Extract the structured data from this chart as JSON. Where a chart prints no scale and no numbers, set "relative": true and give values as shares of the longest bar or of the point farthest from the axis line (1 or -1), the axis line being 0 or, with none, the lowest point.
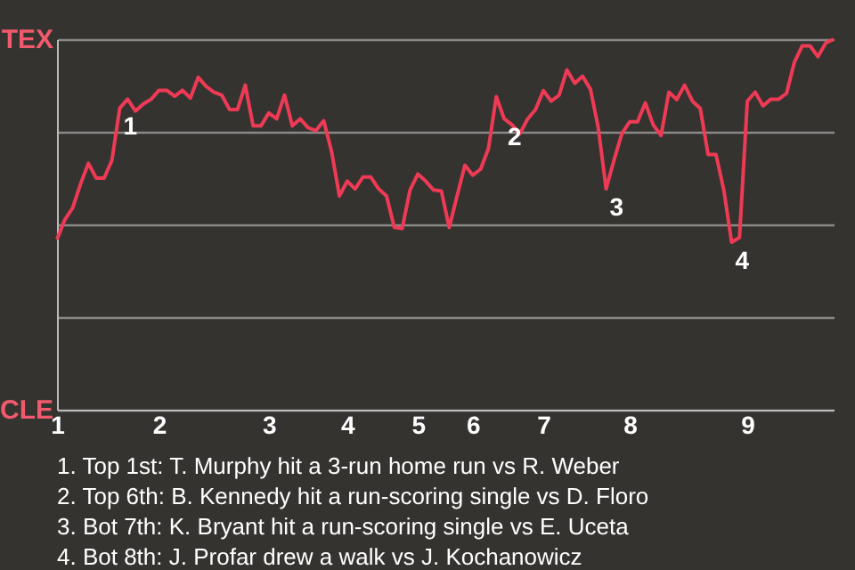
{
  "chart_data": {
    "type": "line",
    "relative": true,
    "categories": [
      "1",
      null,
      null,
      null,
      null,
      null,
      null,
      null,
      null,
      null,
      null,
      null,
      null,
      "2",
      null,
      null,
      null,
      null,
      null,
      null,
      null,
      null,
      null,
      null,
      null,
      null,
      null,
      "3",
      null,
      null,
      null,
      null,
      null,
      null,
      null,
      null,
      null,
      "4",
      null,
      null,
      null,
      null,
      null,
      null,
      null,
      null,
      "5",
      null,
      null,
      null,
      null,
      null,
      null,
      "6",
      null,
      null,
      null,
      null,
      null,
      null,
      null,
      null,
      "7",
      null,
      null,
      null,
      null,
      null,
      null,
      null,
      null,
      null,
      null,
      "8",
      null,
      null,
      null,
      null,
      null,
      null,
      null,
      null,
      null,
      null,
      null,
      null,
      null,
      null,
      "9",
      null,
      null,
      null,
      null,
      null,
      null,
      null,
      null,
      null,
      null,
      null
    ],
    "series": [
      {
        "color": "#ef3a55",
        "values": [
          0.46,
          0.513,
          0.545,
          0.609,
          0.665,
          0.625,
          0.625,
          0.673,
          0.814,
          0.838,
          0.806,
          0.825,
          0.838,
          0.862,
          0.862,
          0.846,
          0.862,
          0.841,
          0.897,
          0.873,
          0.857,
          0.849,
          0.81,
          0.81,
          0.876,
          0.766,
          0.766,
          0.801,
          0.785,
          0.849,
          0.766,
          0.785,
          0.761,
          0.753,
          0.78,
          0.697,
          0.577,
          0.617,
          0.596,
          0.628,
          0.628,
          0.596,
          0.577,
          0.492,
          0.489,
          0.593,
          0.636,
          0.617,
          0.593,
          0.59,
          0.492,
          0.577,
          0.66,
          0.633,
          0.649,
          0.705,
          0.845,
          0.785,
          0.769,
          0.745,
          0.785,
          0.81,
          0.861,
          0.833,
          0.849,
          0.917,
          0.881,
          0.9,
          0.865,
          0.761,
          0.596,
          0.673,
          0.745,
          0.777,
          0.777,
          0.828,
          0.769,
          0.74,
          0.857,
          0.837,
          0.876,
          0.833,
          0.813,
          0.689,
          0.689,
          0.593,
          0.452,
          0.465,
          0.833,
          0.857,
          0.82,
          0.838,
          0.838,
          0.854,
          0.938,
          0.982,
          0.982,
          0.953,
          0.99,
          1
        ]
      }
    ],
    "grid": "y",
    "marker": "none",
    "line_style": "solid",
    "annotations": [
      "TEX",
      "CLE",
      {
        "text": "1",
        "y": 0.814
      },
      {
        "text": "2",
        "y": 0.785
      },
      {
        "text": "3",
        "y": 0.596
      },
      {
        "text": "4",
        "y": 0.452
      },
      "1. Top 1st: T. Murphy hit a 3-run home run vs R. Weber",
      "2. Top 6th: B. Kennedy hit a run-scoring single vs D. Floro",
      "3. Bot 7th: K. Bryant hit a run-scoring single vs E. Uceta",
      "4. Bot 8th: J. Profar drew a walk vs J. Kochanowicz"
    ]
  }
}
